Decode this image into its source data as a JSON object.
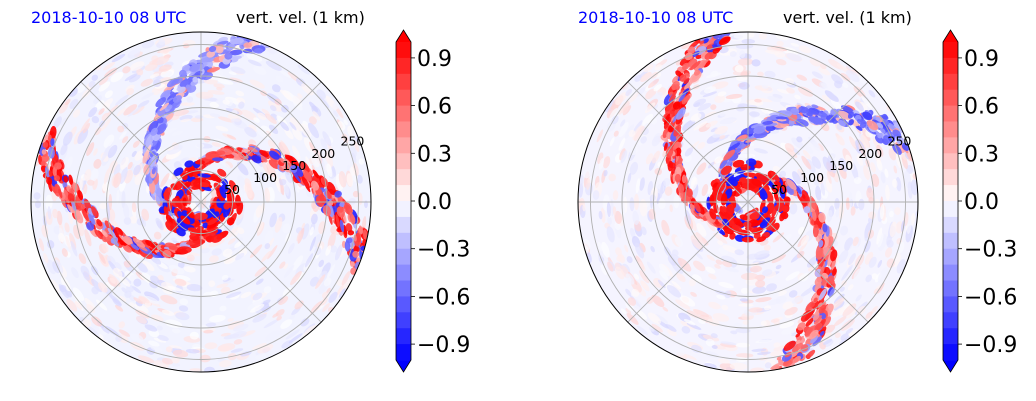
{
  "chart_data": [
    {
      "type": "heatmap",
      "projection": "polar",
      "time_label": "2018-10-10 08 UTC",
      "title": "vert. vel. (1 km)",
      "radial_ticks": [
        "50",
        "100",
        "150",
        "200",
        "250"
      ],
      "colorbar": {
        "ticks": [
          "0.9",
          "0.6",
          "0.3",
          "0.0",
          "−0.3",
          "−0.6",
          "−0.9"
        ],
        "range": [
          -1.0,
          1.0
        ],
        "colormap": "bwr",
        "extend": "both"
      },
      "colors": {
        "positive": "#ff0000",
        "negative": "#0000ff",
        "neutral": "#ffffff",
        "time_label": "#0000ff"
      }
    },
    {
      "type": "heatmap",
      "projection": "polar",
      "time_label": "2018-10-10 08 UTC",
      "title": "vert. vel. (1 km)",
      "radial_ticks": [
        "50",
        "100",
        "150",
        "200",
        "250"
      ],
      "colorbar": {
        "ticks": [
          "0.9",
          "0.6",
          "0.3",
          "0.0",
          "−0.3",
          "−0.6",
          "−0.9"
        ],
        "range": [
          -1.0,
          1.0
        ],
        "colormap": "bwr",
        "extend": "both"
      },
      "colors": {
        "positive": "#ff0000",
        "negative": "#0000ff",
        "neutral": "#ffffff",
        "time_label": "#0000ff"
      }
    }
  ]
}
